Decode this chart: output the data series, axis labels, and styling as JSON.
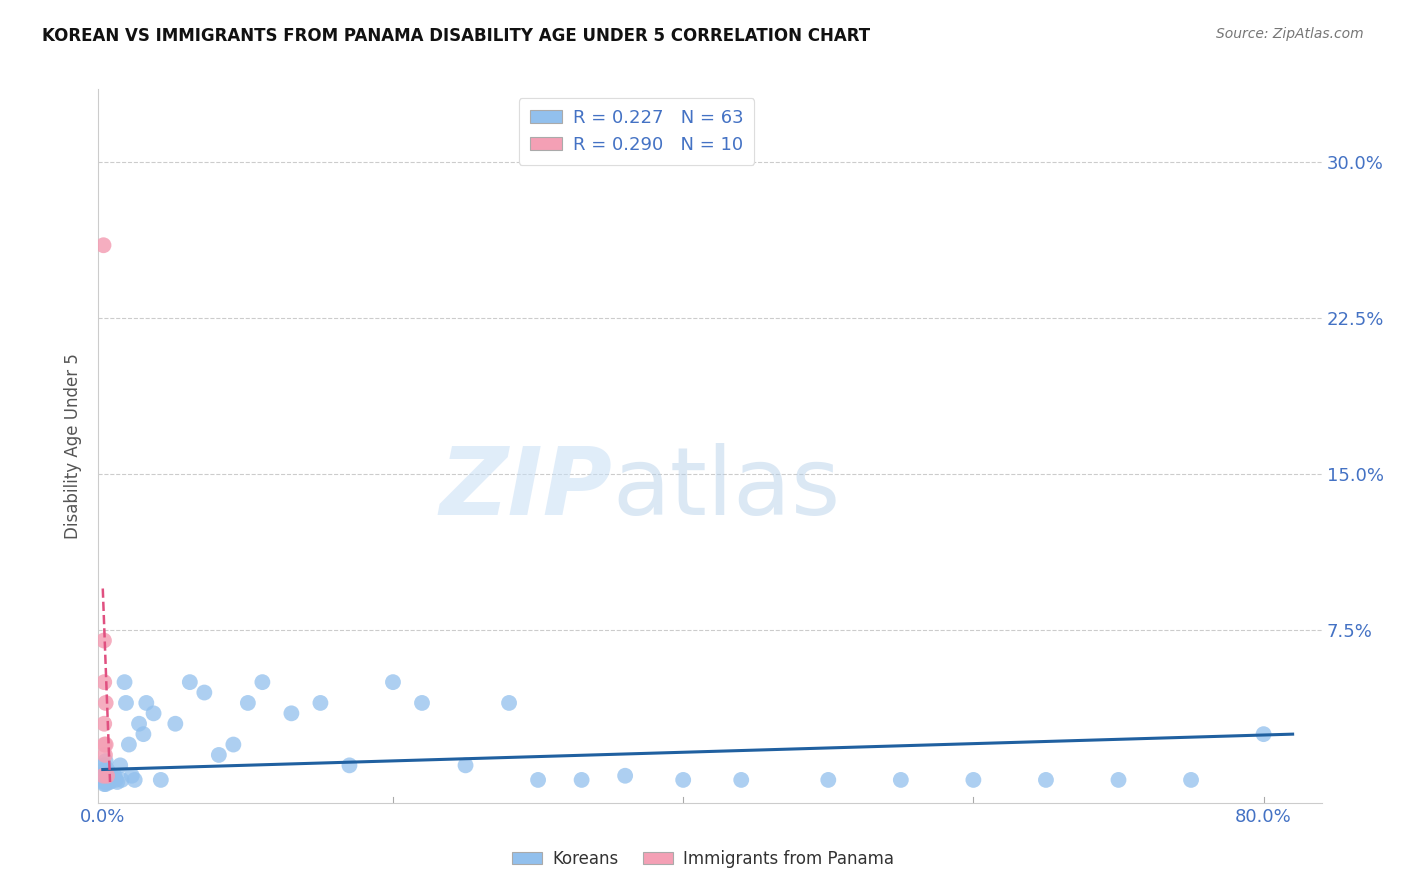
{
  "title": "KOREAN VS IMMIGRANTS FROM PANAMA DISABILITY AGE UNDER 5 CORRELATION CHART",
  "source": "Source: ZipAtlas.com",
  "ylabel": "Disability Age Under 5",
  "ytick_labels": [
    "7.5%",
    "15.0%",
    "22.5%",
    "30.0%"
  ],
  "ytick_values": [
    0.075,
    0.15,
    0.225,
    0.3
  ],
  "xlim": [
    -0.003,
    0.84
  ],
  "ylim": [
    -0.008,
    0.335
  ],
  "watermark_zip": "ZIP",
  "watermark_atlas": "atlas",
  "legend_blue_r": "R = 0.227",
  "legend_blue_n": "N = 63",
  "legend_pink_r": "R = 0.290",
  "legend_pink_n": "N = 10",
  "blue_color": "#92C0ED",
  "pink_color": "#F4A0B5",
  "trendline_blue_color": "#2060A0",
  "trendline_pink_color": "#E05080",
  "background_color": "#ffffff",
  "korean_x": [
    0.0005,
    0.001,
    0.001,
    0.001,
    0.001,
    0.0015,
    0.0015,
    0.002,
    0.002,
    0.002,
    0.002,
    0.003,
    0.003,
    0.003,
    0.004,
    0.004,
    0.005,
    0.005,
    0.006,
    0.007,
    0.008,
    0.009,
    0.01,
    0.012,
    0.013,
    0.015,
    0.016,
    0.018,
    0.02,
    0.022,
    0.025,
    0.028,
    0.03,
    0.035,
    0.04,
    0.05,
    0.06,
    0.07,
    0.08,
    0.09,
    0.1,
    0.11,
    0.13,
    0.15,
    0.17,
    0.2,
    0.22,
    0.25,
    0.28,
    0.3,
    0.33,
    0.36,
    0.4,
    0.44,
    0.5,
    0.55,
    0.6,
    0.65,
    0.7,
    0.75,
    0.8,
    0.001,
    0.002
  ],
  "korean_y": [
    0.005,
    0.003,
    0.008,
    0.002,
    0.01,
    0.003,
    0.006,
    0.004,
    0.007,
    0.002,
    0.012,
    0.003,
    0.005,
    0.008,
    0.004,
    0.002,
    0.006,
    0.002,
    0.003,
    0.004,
    0.005,
    0.003,
    0.002,
    0.01,
    0.003,
    0.05,
    0.04,
    0.02,
    0.005,
    0.003,
    0.03,
    0.025,
    0.04,
    0.035,
    0.003,
    0.03,
    0.05,
    0.045,
    0.015,
    0.02,
    0.04,
    0.05,
    0.035,
    0.04,
    0.01,
    0.05,
    0.04,
    0.01,
    0.04,
    0.003,
    0.003,
    0.005,
    0.003,
    0.003,
    0.003,
    0.003,
    0.003,
    0.003,
    0.003,
    0.003,
    0.025,
    0.001,
    0.001
  ],
  "panama_x": [
    0.0005,
    0.0008,
    0.001,
    0.001,
    0.0012,
    0.0015,
    0.002,
    0.002,
    0.003,
    0.0005
  ],
  "panama_y": [
    0.26,
    0.07,
    0.05,
    0.03,
    0.02,
    0.015,
    0.04,
    0.02,
    0.005,
    0.005
  ],
  "blue_trend_x": [
    0.0,
    0.82
  ],
  "blue_trend_y": [
    0.008,
    0.025
  ],
  "pink_trend_x": [
    0.0,
    0.005
  ],
  "pink_trend_y": [
    0.095,
    0.002
  ]
}
